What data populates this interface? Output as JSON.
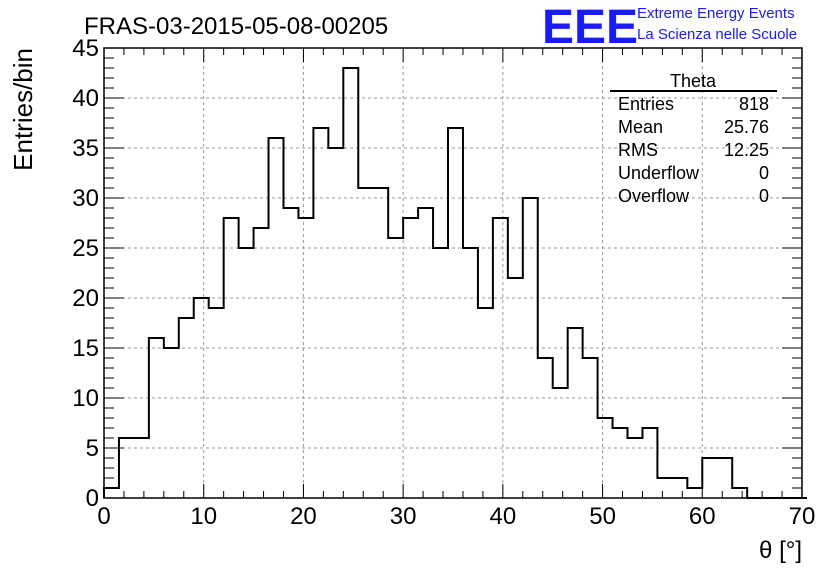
{
  "chart_data": {
    "type": "bar",
    "title": "FRAS-03-2015-05-08-00205",
    "xlabel": "θ [°]",
    "ylabel": "Entries/bin",
    "xlim": [
      0,
      70
    ],
    "ylim": [
      0,
      45
    ],
    "bin_width": 1.5,
    "x_ticks": [
      0,
      10,
      20,
      30,
      40,
      50,
      60,
      70
    ],
    "y_ticks": [
      0,
      5,
      10,
      15,
      20,
      25,
      30,
      35,
      40,
      45
    ],
    "grid": true,
    "values": [
      1,
      6,
      6,
      16,
      15,
      18,
      20,
      19,
      28,
      25,
      27,
      36,
      29,
      28,
      37,
      35,
      43,
      31,
      31,
      26,
      28,
      29,
      25,
      37,
      25,
      19,
      28,
      22,
      30,
      14,
      11,
      17,
      14,
      8,
      7,
      6,
      7,
      2,
      2,
      1,
      4,
      4,
      1,
      0,
      0,
      0,
      0
    ],
    "stats": {
      "name": "Theta",
      "rows": [
        {
          "label": "Entries",
          "value": "818"
        },
        {
          "label": "Mean",
          "value": "25.76"
        },
        {
          "label": "RMS",
          "value": "12.25"
        },
        {
          "label": "Underflow",
          "value": "0"
        },
        {
          "label": "Overflow",
          "value": "0"
        }
      ]
    }
  },
  "logo": {
    "letters": "EEE",
    "line1": "Extreme Energy Events",
    "line2": "La Scienza nelle Scuole",
    "color": "#1a1aff"
  },
  "colors": {
    "line": "#000000",
    "grid": "#9a9a9a"
  }
}
